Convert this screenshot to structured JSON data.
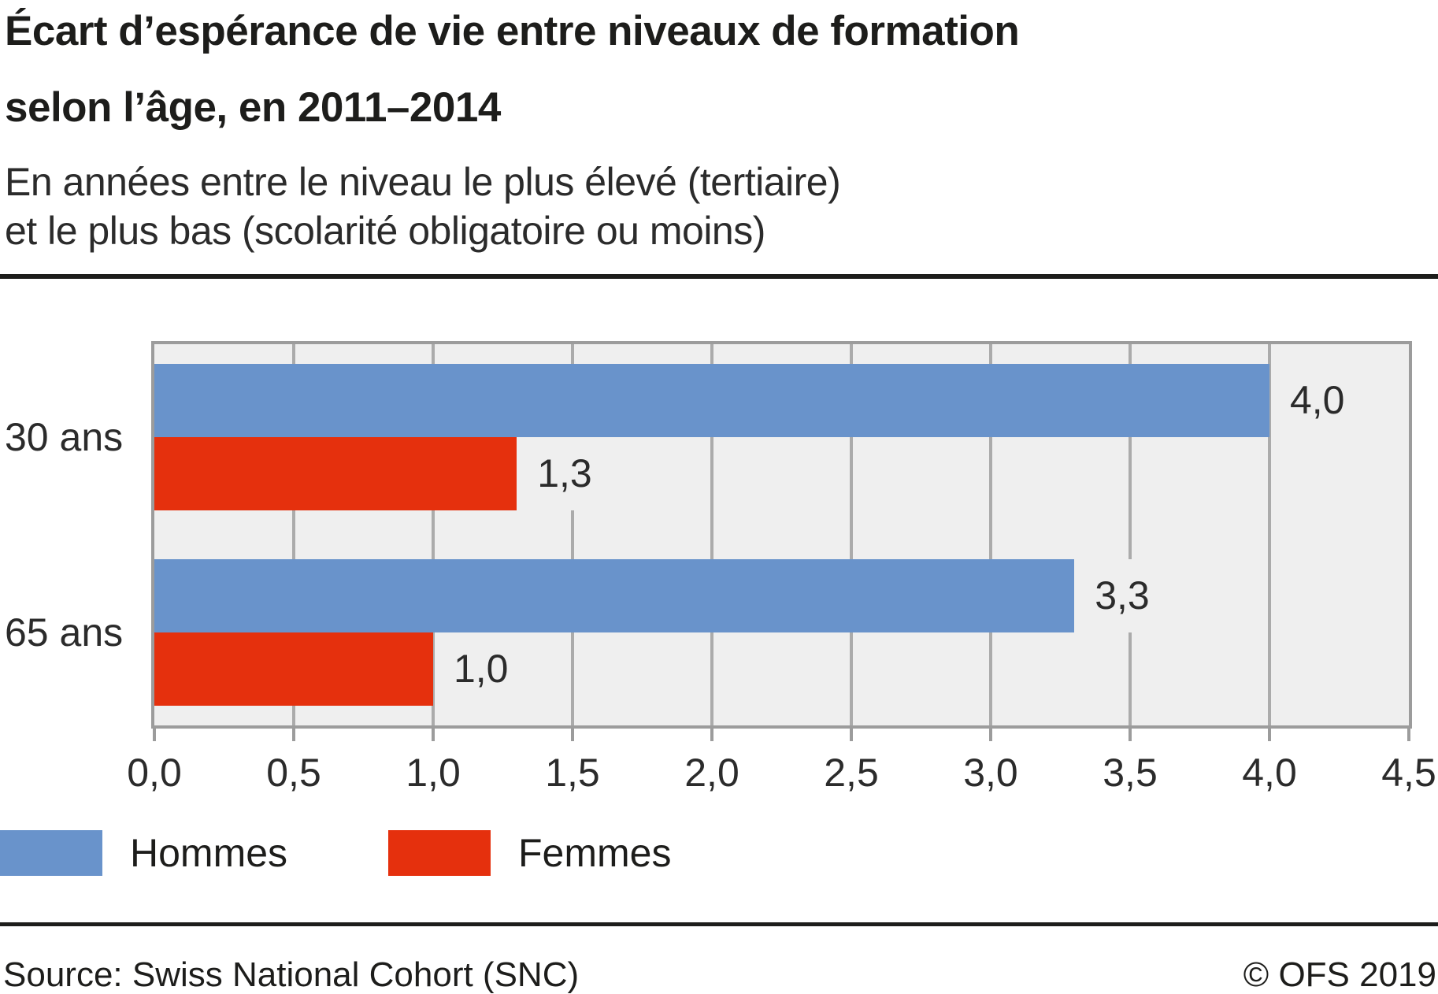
{
  "header": {
    "title_line1": "Écart d’espérance de vie entre niveaux de formation",
    "title_line2": "selon l’âge, en 2011–2014",
    "subtitle_line1": "En années entre le niveau le plus élevé (tertiaire)",
    "subtitle_line2": "et le plus bas (scolarité obligatoire ou moins)"
  },
  "chart_data": {
    "type": "bar",
    "orientation": "horizontal",
    "title": "Écart d’espérance de vie entre niveaux de formation selon l’âge, en 2011–2014",
    "subtitle": "En années entre le niveau le plus élevé (tertiaire) et le plus bas (scolarité obligatoire ou moins)",
    "categories": [
      "30 ans",
      "65 ans"
    ],
    "series": [
      {
        "name": "Hommes",
        "color": "#6993cb",
        "values": [
          4.0,
          3.3
        ],
        "value_labels": [
          "4,0",
          "3,3"
        ]
      },
      {
        "name": "Femmes",
        "color": "#e5300d",
        "values": [
          1.3,
          1.0
        ],
        "value_labels": [
          "1,3",
          "1,0"
        ]
      }
    ],
    "xlim": [
      0,
      4.5
    ],
    "xticks": [
      "0,0",
      "0,5",
      "1,0",
      "1,5",
      "2,0",
      "2,5",
      "3,0",
      "3,5",
      "4,0",
      "4,5"
    ],
    "grid": true,
    "legend_position": "bottom",
    "plot_bg_color": "#efefef",
    "grid_color": "#ababab",
    "axis_border_color": "#9c9c9c"
  },
  "legend": [
    {
      "label": "Hommes",
      "color": "#6993cb"
    },
    {
      "label": "Femmes",
      "color": "#e5300d"
    }
  ],
  "footer": {
    "source": "Source: Swiss National Cohort (SNC)",
    "copyright": "© OFS 2019"
  }
}
